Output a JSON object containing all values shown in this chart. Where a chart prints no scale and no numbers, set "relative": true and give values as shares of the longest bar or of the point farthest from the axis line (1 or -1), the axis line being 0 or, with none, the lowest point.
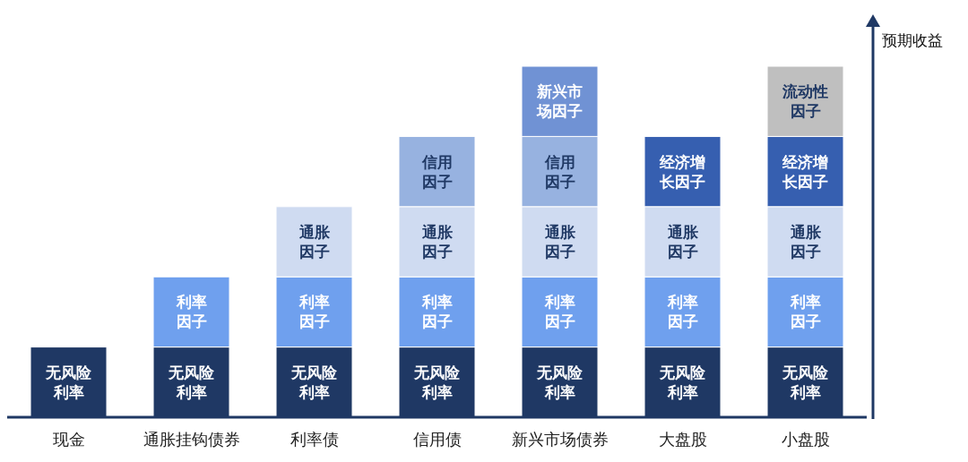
{
  "chart_data": {
    "type": "bar",
    "stacked": true,
    "relative": true,
    "ylabel": "预期收益",
    "categories": [
      "现金",
      "通胀挂钩债券",
      "利率债",
      "信用债",
      "新兴市场债券",
      "大盘股",
      "小盘股"
    ],
    "legend": false,
    "grid": false,
    "series": [
      {
        "name": "无风险利率",
        "color": "#1f3864",
        "values": [
          0.2,
          0.2,
          0.2,
          0.2,
          0.2,
          0.2,
          0.2
        ]
      },
      {
        "name": "利率因子",
        "color": "#6fa0ee",
        "values": [
          null,
          0.2,
          0.2,
          0.2,
          0.2,
          0.2,
          0.2
        ]
      },
      {
        "name": "通胀因子",
        "color": "#cfdbf1",
        "values": [
          null,
          null,
          0.2,
          0.2,
          0.2,
          0.2,
          0.2
        ]
      },
      {
        "name": "信用因子",
        "color": "#97b2e0",
        "values": [
          null,
          null,
          null,
          0.2,
          0.2,
          null,
          null
        ]
      },
      {
        "name": "新兴市场因子",
        "color": "#7092d4",
        "values": [
          null,
          null,
          null,
          null,
          0.2,
          null,
          null
        ]
      },
      {
        "name": "经济增长因子",
        "color": "#365fb0",
        "values": [
          null,
          null,
          null,
          null,
          null,
          0.2,
          0.2
        ]
      },
      {
        "name": "流动性因子",
        "color": "#bfbfbf",
        "values": [
          null,
          null,
          null,
          null,
          null,
          null,
          0.2
        ]
      }
    ]
  }
}
